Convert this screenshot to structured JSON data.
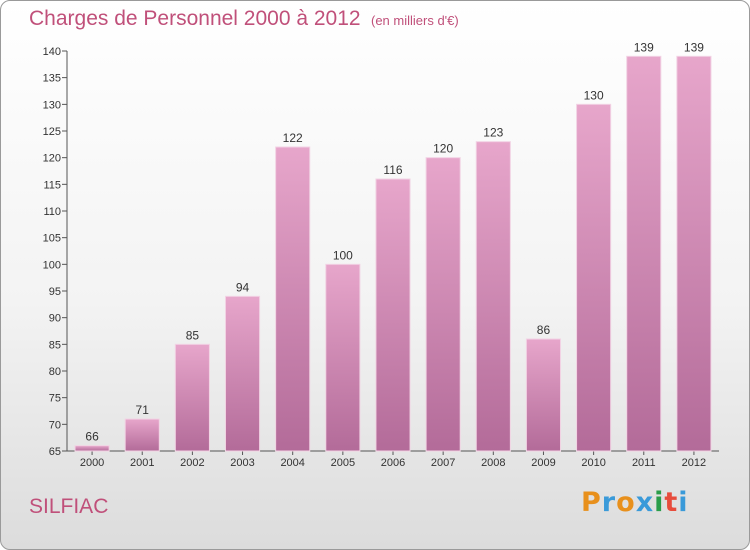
{
  "title": "Charges de Personnel 2000 à 2012",
  "subtitle": "(en milliers d'€)",
  "commune": "SILFIAC",
  "logo": {
    "letters": [
      "P",
      "r",
      "o",
      "x",
      "i",
      "t",
      "i"
    ],
    "colors": [
      "#e8901c",
      "#3a9ad9",
      "#e8901c",
      "#3a9ad9",
      "#2a9d4a",
      "#e74c3c",
      "#3a9ad9"
    ]
  },
  "colors": {
    "bar_top": "#e7a6cb",
    "bar_bottom": "#b36b99",
    "title": "#c0507a"
  },
  "chart_data": {
    "type": "bar",
    "categories": [
      "2000",
      "2001",
      "2002",
      "2003",
      "2004",
      "2005",
      "2006",
      "2007",
      "2008",
      "2009",
      "2010",
      "2011",
      "2012"
    ],
    "values": [
      66,
      71,
      85,
      94,
      122,
      100,
      116,
      120,
      123,
      86,
      130,
      139,
      139
    ],
    "ylim": [
      65,
      140
    ],
    "yticks": [
      65,
      70,
      75,
      80,
      85,
      90,
      95,
      100,
      105,
      110,
      115,
      120,
      125,
      130,
      135,
      140
    ],
    "grid": false
  }
}
